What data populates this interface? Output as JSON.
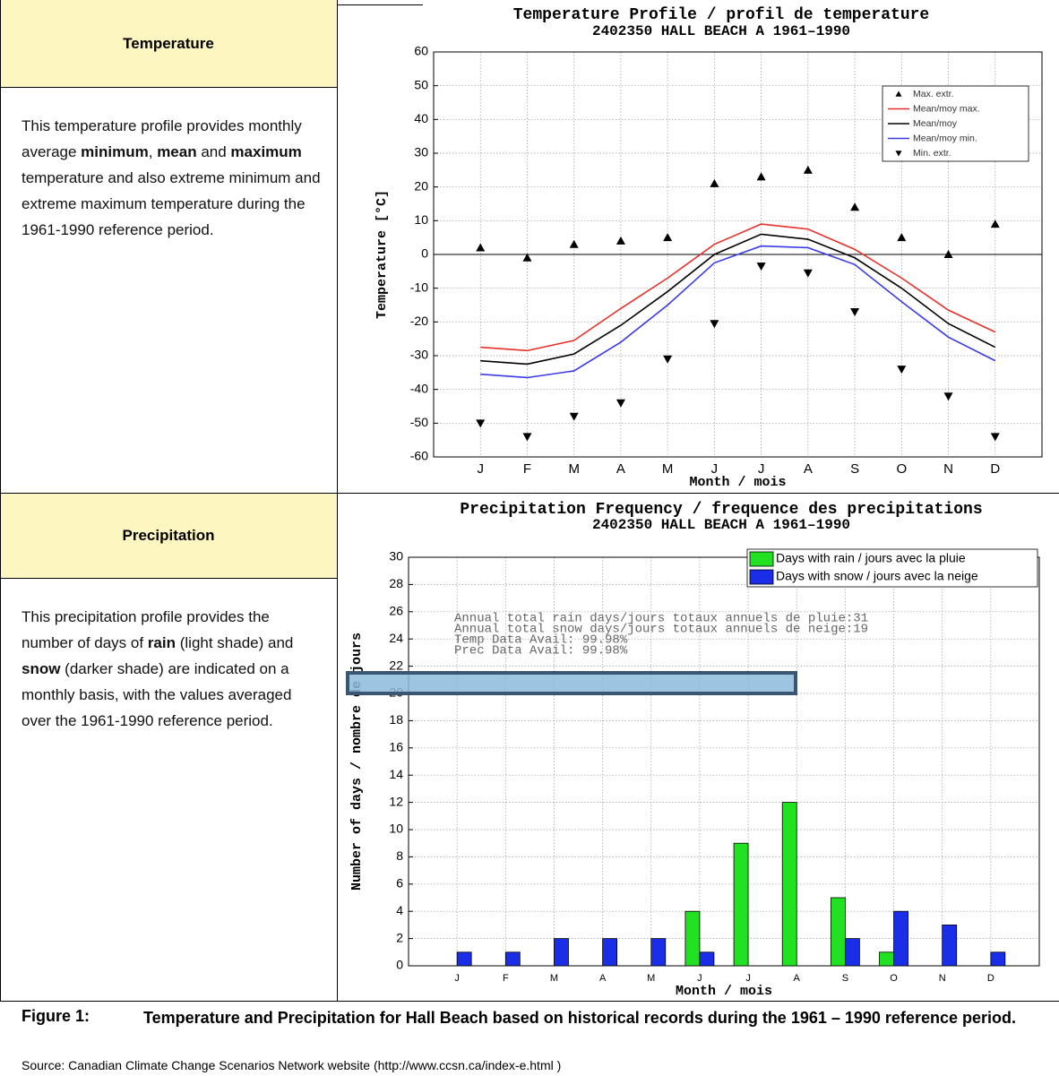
{
  "temperature_cell": {
    "heading": "Temperature",
    "text": [
      "This temperature profile provides monthly average ",
      "minimum",
      ", ",
      "mean",
      " and ",
      "maximum",
      " temperature and also extreme minimum and extreme maximum temperature during the 1961-1990 reference period."
    ]
  },
  "precipitation_cell": {
    "heading": "Precipitation",
    "text": [
      "This precipitation profile provides the number of days of ",
      "rain",
      " (light shade) and ",
      "snow",
      " (darker shade) are indicated on a monthly basis, with the values averaged over the 1961-1990 reference period."
    ]
  },
  "caption": {
    "label": "Figure 1:",
    "title": "Temperature and Precipitation for Hall Beach based on historical records during the 1961 – 1990 reference period.",
    "source": "Source: Canadian Climate Change Scenarios Network website (http://www.ccsn.ca/index-e.html )"
  },
  "chart_data": [
    {
      "type": "line",
      "title": "Temperature Profile / profil de temperature",
      "subtitle": "2402350 HALL BEACH A 1961–1990",
      "x_label": "Month / mois",
      "y_label": "Temperature [°C]",
      "categories": [
        "J",
        "F",
        "M",
        "A",
        "M",
        "J",
        "J",
        "A",
        "S",
        "O",
        "N",
        "D"
      ],
      "ylim": [
        -60,
        60
      ],
      "yticks": [
        -60,
        -50,
        -40,
        -30,
        -20,
        -10,
        0,
        10,
        20,
        30,
        40,
        50,
        60
      ],
      "grid": true,
      "zero_line": true,
      "legend": "upper right",
      "series": [
        {
          "name": "Max. extr.",
          "color": "#000000",
          "marker": "triangle-up",
          "values": [
            2,
            -1,
            3,
            4,
            5,
            21,
            23,
            25,
            14,
            5,
            0,
            9
          ]
        },
        {
          "name": "Mean/moy max.",
          "color": "#e8302a",
          "values": [
            -27.5,
            -28.5,
            -25.5,
            -16,
            -7,
            3,
            9,
            7.5,
            1.5,
            -7,
            -16.5,
            -23
          ]
        },
        {
          "name": "Mean/moy",
          "color": "#000000",
          "values": [
            -31.5,
            -32.5,
            -29.5,
            -21,
            -11,
            0,
            6,
            4.5,
            -1,
            -10,
            -20.5,
            -27.5
          ]
        },
        {
          "name": "Mean/moy min.",
          "color": "#3a3ae8",
          "values": [
            -35.5,
            -36.5,
            -34.5,
            -26,
            -15,
            -2.5,
            2.5,
            2,
            -3,
            -14,
            -24.5,
            -31.5
          ]
        },
        {
          "name": "Min. extr.",
          "color": "#000000",
          "marker": "triangle-down",
          "values": [
            -50,
            -54,
            -48,
            -44,
            -31,
            -20.5,
            -3.5,
            -5.5,
            -17,
            -34,
            -42,
            -54
          ]
        }
      ]
    },
    {
      "type": "bar",
      "title": "Precipitation Frequency / frequence des precipitations",
      "subtitle": "2402350 HALL BEACH A 1961–1990",
      "x_label": "Month / mois",
      "y_label": "Number of days / nombre de jours",
      "categories": [
        "J",
        "F",
        "M",
        "A",
        "M",
        "J",
        "J",
        "A",
        "S",
        "O",
        "N",
        "D"
      ],
      "ylim": [
        0,
        30
      ],
      "yticks": [
        0,
        2,
        4,
        6,
        8,
        10,
        12,
        14,
        16,
        18,
        20,
        22,
        24,
        26,
        28,
        30
      ],
      "grid": true,
      "legend": "upper right",
      "annotations": [
        "Annual total rain days/jours totaux annuels de pluie:31",
        "Annual total snow days/jours totaux annuels de neige:19",
        "Temp Data Avail: 99.98%",
        "Prec Data Avail: 99.98%"
      ],
      "series": [
        {
          "name": "Days with rain / jours avec la pluie",
          "color": "#22e022",
          "values": [
            0,
            0,
            0,
            0,
            0,
            4,
            9,
            12,
            5,
            1,
            0,
            0
          ]
        },
        {
          "name": "Days with snow / jours avec la neige",
          "color": "#1a2ee8",
          "values": [
            1,
            1,
            2,
            2,
            2,
            1,
            0,
            0,
            2,
            4,
            3,
            1
          ]
        }
      ]
    }
  ]
}
